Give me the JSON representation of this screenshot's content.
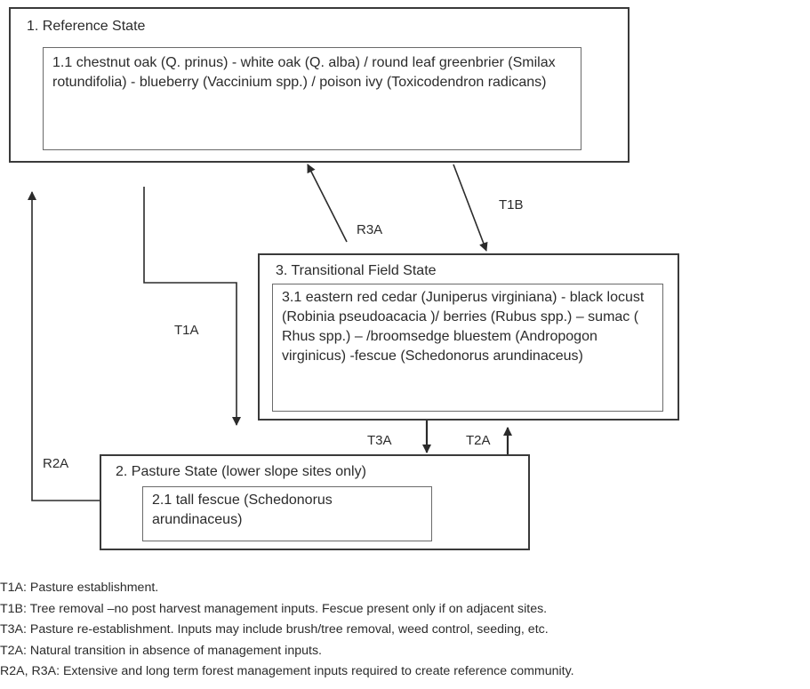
{
  "states": {
    "reference": {
      "title": "1. Reference State",
      "community": "1.1 chestnut oak (Q. prinus) - white oak (Q. alba)  / round leaf greenbrier (Smilax rotundifolia) - blueberry (Vaccinium spp.) / poison ivy (Toxicodendron radicans)"
    },
    "transitional": {
      "title": "3. Transitional Field State",
      "community": "3.1 eastern red cedar (Juniperus virginiana) - black locust (Robinia pseudoacacia )/ berries (Rubus spp.) – sumac ( Rhus spp.) – /broomsedge bluestem (Andropogon virginicus) -fescue (Schedonorus arundinaceus)"
    },
    "pasture": {
      "title": "2. Pasture State (lower slope sites only)",
      "community": "2.1 tall fescue (Schedonorus arundinaceus)"
    }
  },
  "arrows": {
    "t1a": "T1A",
    "t1b": "T1B",
    "r3a": "R3A",
    "r2a": "R2A",
    "t3a": "T3A",
    "t2a": "T2A"
  },
  "legend": [
    "T1A: Pasture establishment.",
    "T1B: Tree removal –no post harvest management inputs. Fescue present only if on adjacent sites.",
    "T3A: Pasture re-establishment.  Inputs may include brush/tree removal, weed control, seeding, etc.",
    "T2A: Natural transition in absence of management inputs.",
    "R2A, R3A: Extensive and long term forest management inputs required to create reference community."
  ]
}
